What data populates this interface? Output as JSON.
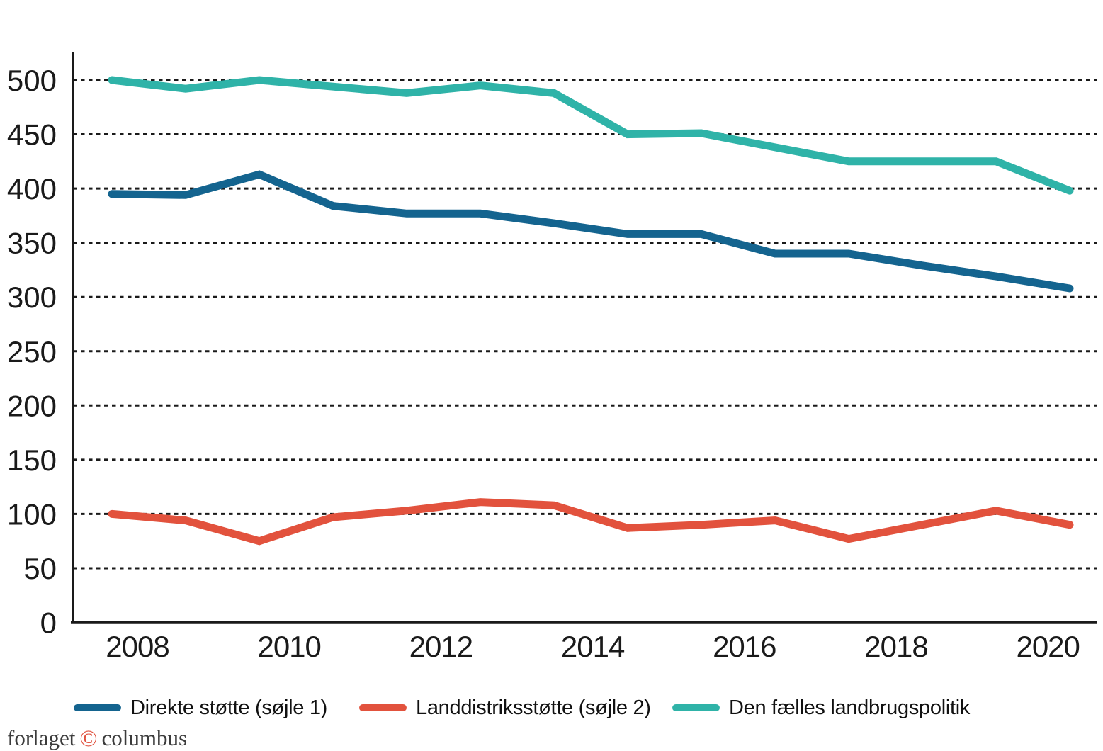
{
  "page": {
    "background": "#ffffff"
  },
  "chart_data": {
    "type": "line",
    "x": [
      2008,
      2009,
      2010,
      2011,
      2012,
      2013,
      2014,
      2015,
      2016,
      2017,
      2018,
      2019,
      2020,
      2021
    ],
    "x_tick_labels": [
      "2008",
      "2010",
      "2012",
      "2014",
      "2016",
      "2018",
      "2020"
    ],
    "y_ticks": [
      0,
      50,
      100,
      150,
      200,
      250,
      300,
      350,
      400,
      450,
      500
    ],
    "ylim": [
      0,
      525
    ],
    "xlabel": "",
    "ylabel": "",
    "title": "",
    "grid": "horizontal dotted black lines at every 50 units",
    "legend_position": "bottom",
    "series": [
      {
        "name": "Direkte støtte (søjle 1)",
        "color": "#14648F",
        "values": [
          395,
          394,
          413,
          384,
          377,
          377,
          368,
          358,
          358,
          340,
          340,
          329,
          319,
          308
        ]
      },
      {
        "name": "Landdistriksstøtte (søjle 2)",
        "color": "#E2523D",
        "values": [
          100,
          94,
          75,
          97,
          103,
          111,
          108,
          87,
          90,
          94,
          77,
          90,
          103,
          90
        ]
      },
      {
        "name": "Den fælles landbrugspolitik",
        "color": "#2FB3A8",
        "values": [
          500,
          492,
          500,
          494,
          488,
          495,
          488,
          450,
          451,
          438,
          425,
          425,
          425,
          398
        ]
      }
    ]
  },
  "footer": {
    "prefix": "forlaget",
    "copyright_symbol": "©",
    "name": "columbus"
  }
}
